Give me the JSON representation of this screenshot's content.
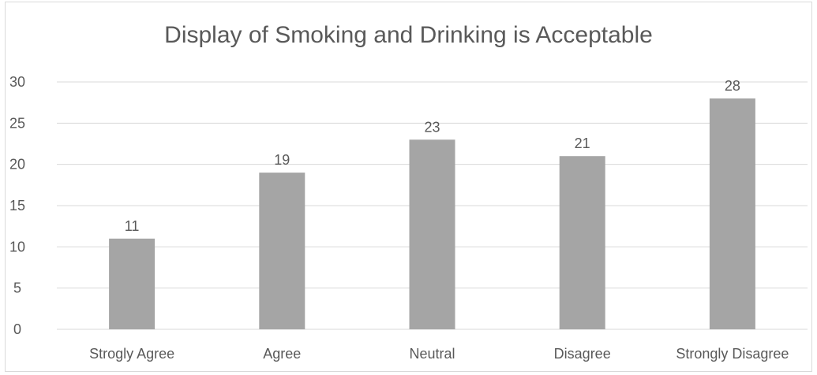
{
  "chart_data": {
    "type": "bar",
    "title": "Display of Smoking and Drinking is Acceptable",
    "categories": [
      "Strogly Agree",
      "Agree",
      "Neutral",
      "Disagree",
      "Strongly Disagree"
    ],
    "values": [
      11,
      19,
      23,
      21,
      28
    ],
    "yticks": [
      "0",
      "5",
      "10",
      "15",
      "20",
      "25",
      "30"
    ],
    "ylim": [
      0,
      30
    ],
    "grid": true,
    "legend": "none",
    "bar_color": "#a5a5a5",
    "grid_color": "#d9d9d9",
    "text_color": "#595959"
  }
}
